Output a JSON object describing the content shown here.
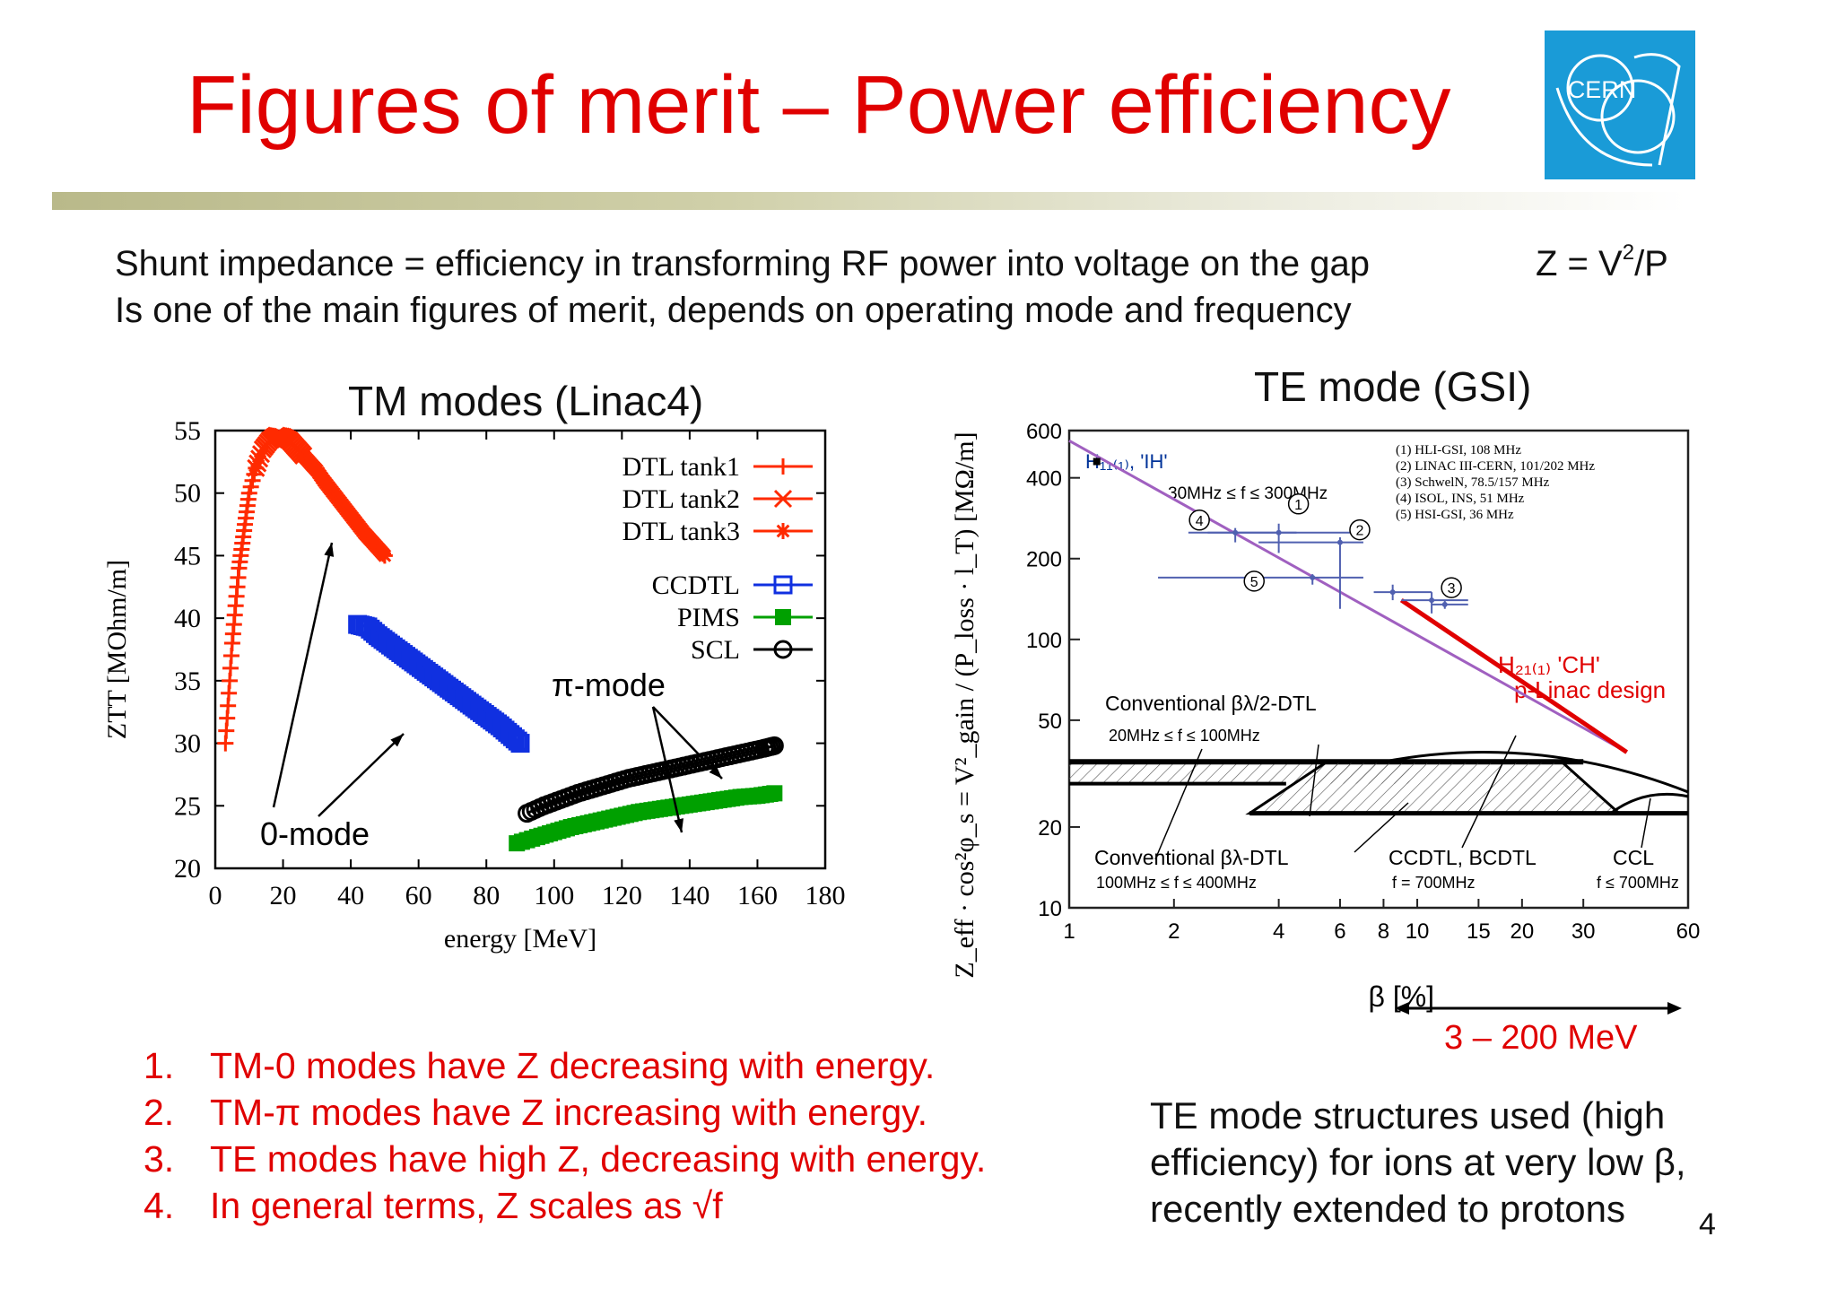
{
  "slide": {
    "title": "Figures of merit – Power efficiency",
    "logo_text": "CERN",
    "intro_line1": "Shunt impedance = efficiency in transforming RF power into voltage on the gap",
    "intro_line2": "Is one of the main figures of merit, depends on operating mode and frequency",
    "formula_left": "Z = V",
    "formula_exp": "2",
    "formula_right": "/P",
    "left_heading": "TM modes (Linac4)",
    "right_heading": "TE mode (GSI)",
    "range_label": "3 – 200 MeV",
    "te_note_lines": [
      "TE mode structures used (high",
      "efficiency) for ions at very low β,",
      "recently extended to protons"
    ],
    "page_number": "4",
    "points": [
      {
        "num": "1.",
        "text": "TM-0 modes have Z decreasing with energy."
      },
      {
        "num": "2.",
        "text": "TM-π modes have Z increasing with energy."
      },
      {
        "num": "3.",
        "text": "TE modes have high Z, decreasing with energy."
      },
      {
        "num": "4.",
        "text": "In general terms, Z scales as √f"
      }
    ],
    "colors": {
      "title": "#e00000",
      "logo": "#1a9bd7",
      "tank": "#ff2a00",
      "ccdtl": "#1030e0",
      "pims": "#00a000",
      "scl": "#000000"
    }
  },
  "chart_data": [
    {
      "type": "line",
      "xlabel": "energy [MeV]",
      "ylabel": "ZTT [MOhm/m]",
      "xlim": [
        0,
        180
      ],
      "ylim": [
        20,
        55
      ],
      "xticks": [
        0,
        20,
        40,
        60,
        80,
        100,
        120,
        140,
        160,
        180
      ],
      "yticks": [
        20,
        25,
        30,
        35,
        40,
        45,
        50,
        55
      ],
      "legend_position": "top-right",
      "annotations": [
        "0-mode",
        "π-mode"
      ],
      "series": [
        {
          "name": "DTL tank1",
          "marker": "+",
          "x": [
            3,
            4,
            5,
            6,
            7,
            8,
            9,
            10,
            12
          ],
          "y": [
            30,
            34,
            38,
            41,
            44,
            46,
            48,
            50,
            52
          ]
        },
        {
          "name": "DTL tank2",
          "marker": "x",
          "x": [
            12,
            14,
            16,
            18,
            20,
            22,
            24,
            26
          ],
          "y": [
            52,
            53.5,
            54.2,
            54.6,
            54.5,
            54.2,
            53.6,
            53
          ]
        },
        {
          "name": "DTL tank3",
          "marker": "*",
          "x": [
            26,
            28,
            30,
            32,
            34,
            36,
            38,
            40,
            42,
            44,
            46,
            48,
            50
          ],
          "y": [
            53,
            52.4,
            51.8,
            51,
            50.3,
            49.6,
            48.9,
            48.2,
            47.5,
            46.8,
            46.2,
            45.6,
            45
          ]
        },
        {
          "name": "CCDTL",
          "marker": "square-open",
          "x": [
            42,
            45,
            48,
            51,
            54,
            57,
            60,
            63,
            66,
            69,
            72,
            75,
            78,
            81,
            84,
            87,
            90
          ],
          "y": [
            39.5,
            39.3,
            38.6,
            38,
            37.4,
            36.8,
            36.2,
            35.6,
            35,
            34.4,
            33.8,
            33.2,
            32.6,
            32,
            31.4,
            30.7,
            30
          ]
        },
        {
          "name": "PIMS",
          "marker": "square-filled",
          "x": [
            89,
            95,
            100,
            105,
            110,
            115,
            120,
            125,
            130,
            135,
            140,
            145,
            150,
            155,
            160,
            165
          ],
          "y": [
            22,
            22.5,
            22.9,
            23.3,
            23.6,
            23.9,
            24.2,
            24.5,
            24.7,
            24.9,
            25.1,
            25.3,
            25.5,
            25.7,
            25.8,
            26
          ]
        },
        {
          "name": "SCL",
          "marker": "circle-open",
          "x": [
            92,
            97,
            102,
            107,
            112,
            117,
            122,
            127,
            132,
            137,
            142,
            147,
            152,
            157,
            162,
            165
          ],
          "y": [
            24.4,
            25,
            25.5,
            26,
            26.4,
            26.8,
            27.2,
            27.5,
            27.8,
            28.1,
            28.4,
            28.7,
            29,
            29.3,
            29.6,
            29.8
          ]
        }
      ]
    },
    {
      "type": "scatter",
      "xscale": "log",
      "yscale": "log",
      "xlabel": "β [%]",
      "ylabel": "Z_eff · cos²φ_s = V²_gain / (P_loss · l_T)   [MΩ/m]",
      "xlim": [
        1,
        60
      ],
      "ylim": [
        10,
        600
      ],
      "xticks": [
        1,
        2,
        4,
        6,
        8,
        10,
        15,
        20,
        30,
        60
      ],
      "yticks": [
        10,
        20,
        50,
        100,
        200,
        400,
        600
      ],
      "legend": [
        "(1) HLI-GSI, 108 MHz",
        "(2) LINAC III-CERN, 101/202 MHz",
        "(3) SchwelN, 78.5/157 MHz",
        "(4) ISOL, INS, 51 MHz",
        "(5) HSI-GSI, 36 MHz"
      ],
      "annotations": [
        "H₁₁₍₁₎, 'IH'",
        "30MHz ≤ f ≤ 300MHz",
        "H₂₁₍₁₎ 'CH'",
        "p-Linac design",
        "Conventional βλ/2-DTL",
        "20MHz ≤ f ≤ 100MHz",
        "Conventional βλ-DTL",
        "100MHz ≤ f ≤ 400MHz",
        "CCDTL, BCDTL",
        "f = 700MHz",
        "CCL",
        "f ≤ 700MHz"
      ],
      "point_labels": [
        "1",
        "2",
        "3",
        "4",
        "5"
      ],
      "ih_trend": {
        "x": [
          1,
          40
        ],
        "y": [
          550,
          38
        ]
      },
      "ch_trend": {
        "x": [
          9,
          40
        ],
        "y": [
          140,
          38
        ]
      },
      "points": [
        {
          "label": "1",
          "x": 4,
          "y": 250,
          "xmin": 2.5,
          "xmax": 7,
          "ymin": 210,
          "ymax": 270
        },
        {
          "label": "2",
          "x": 6,
          "y": 230,
          "xmin": 3.5,
          "xmax": 7,
          "ymin": 130,
          "ymax": 240
        },
        {
          "label": "3",
          "x": 11,
          "y": 140,
          "xmin": 9,
          "xmax": 14,
          "ymin": 125,
          "ymax": 150
        },
        {
          "label": "4",
          "x": 3,
          "y": 250,
          "xmin": 2.2,
          "xmax": 4.5,
          "ymin": 230,
          "ymax": 260
        },
        {
          "label": "5",
          "x": 5,
          "y": 170,
          "xmin": 1.8,
          "xmax": 7,
          "ymin": 160,
          "ymax": 175
        },
        {
          "label": "",
          "x": 8.5,
          "y": 150,
          "xmin": 7.5,
          "xmax": 11,
          "ymin": 140,
          "ymax": 160
        },
        {
          "label": "",
          "x": 12,
          "y": 135,
          "xmin": 11,
          "xmax": 14,
          "ymin": 130,
          "ymax": 140
        }
      ]
    }
  ]
}
